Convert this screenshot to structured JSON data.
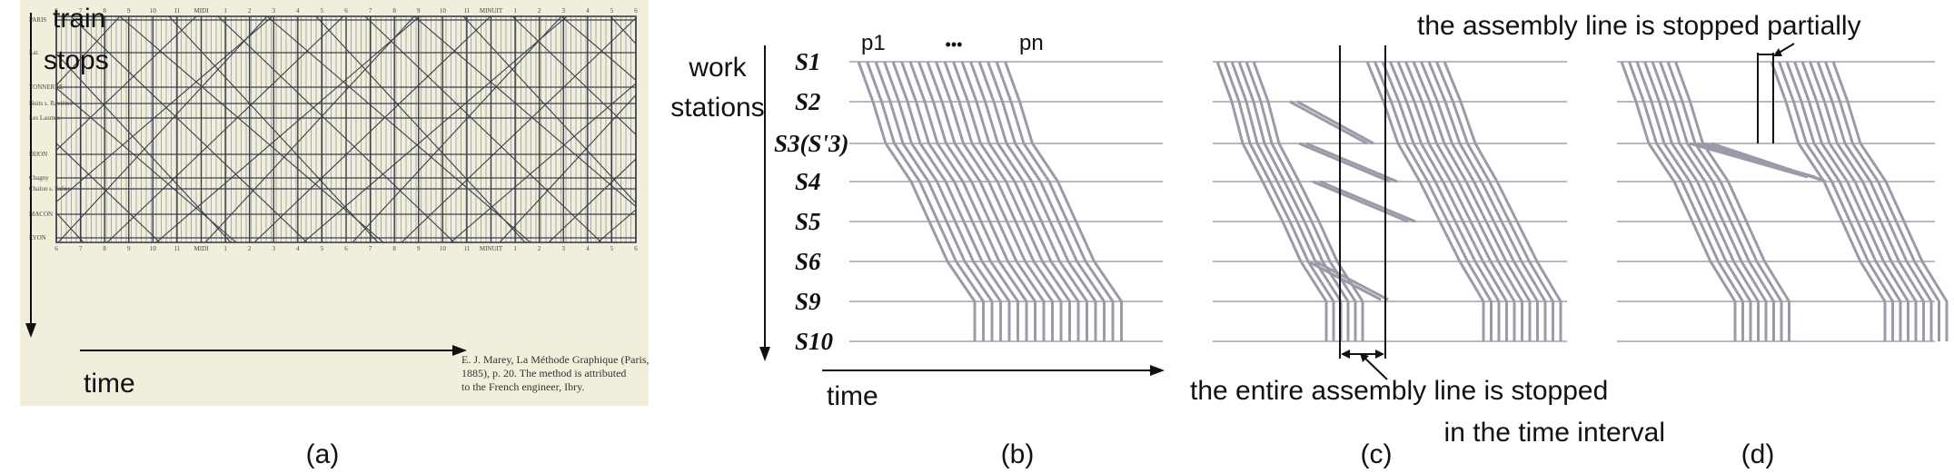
{
  "panel_a": {
    "label": "(a)",
    "annot_train": "train",
    "annot_stops": "stops",
    "annot_time": "time",
    "station_labels": [
      "PARIS",
      "Lar.",
      "TONNERRE",
      "Nuits s. Ravières",
      "Les Laumes",
      "DIJON",
      "Chagny",
      "Chalon s. Saône",
      "MACON",
      "LYON"
    ],
    "top_hours": [
      "6",
      "7",
      "8",
      "9",
      "10",
      "11",
      "MIDI",
      "1",
      "2",
      "3",
      "4",
      "5",
      "6",
      "7",
      "8",
      "9",
      "10",
      "11",
      "MINUIT",
      "1",
      "2",
      "3",
      "4",
      "5",
      "6"
    ],
    "caption_line1": "E. J. Marey, La Méthode Graphique (Paris,",
    "caption_line2": "1885), p. 20. The method is attributed",
    "caption_line3": "to the French engineer, Ibry.",
    "colors": {
      "paper": "#f2eedc",
      "grid": "#3a3f4a",
      "thin": "#8a8f9a"
    }
  },
  "panel_b": {
    "label": "(b)",
    "axis_y_label_line1": "work",
    "axis_y_label_line2": "stations",
    "axis_x_label": "time",
    "products_first": "p1",
    "products_dots": "•••",
    "products_last": "pn",
    "stations": [
      "S1",
      "S2",
      "S3(S'3)",
      "S4",
      "S5",
      "S6",
      "S9",
      "S10"
    ]
  },
  "panel_c": {
    "label": "(c)",
    "annotation_line1": "the entire assembly line is stopped",
    "annotation_line2": "in the time interval"
  },
  "panel_d": {
    "label": "(d)",
    "annotation": "the assembly line is stopped partially"
  },
  "colors": {
    "trace": "#9a9aa8",
    "station_line": "#b8b8c0",
    "axis": "#111111"
  }
}
